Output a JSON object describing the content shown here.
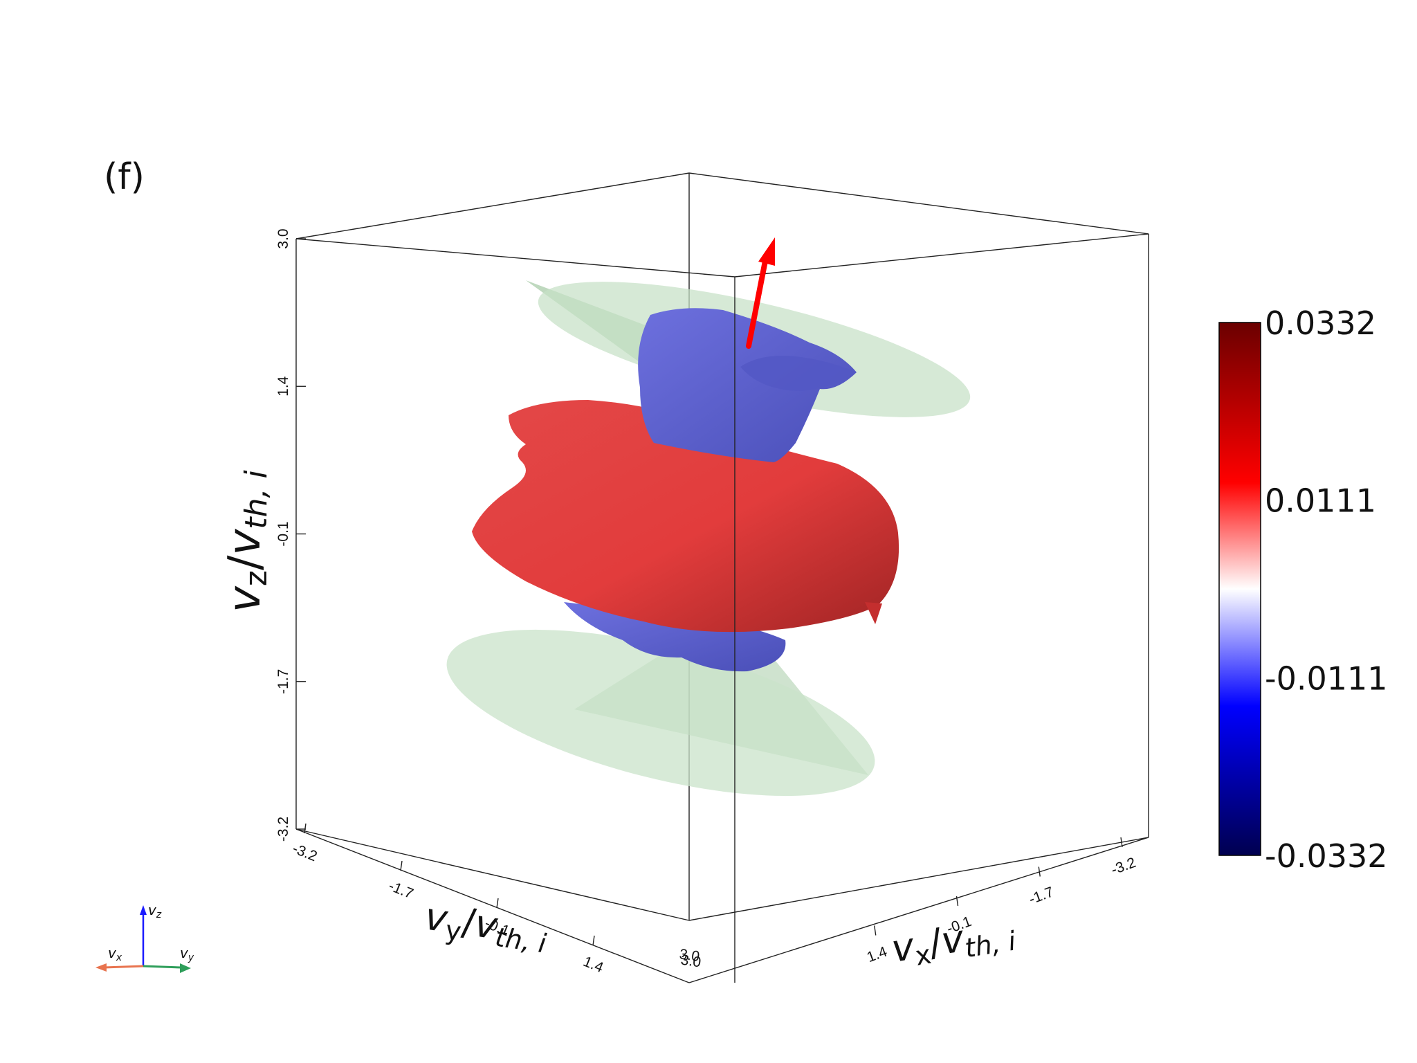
{
  "chart_data": {
    "type": "3d-isosurface",
    "panel_label": "(f)",
    "axes": {
      "x": {
        "label_main": "v",
        "label_sub": "x",
        "label_den": "v",
        "label_den_sub": "th, i",
        "ticks": [
          "1.4",
          "-0.1",
          "-1.7",
          "-3.2"
        ],
        "range": [
          -3.2,
          3.0
        ]
      },
      "y": {
        "label_main": "v",
        "label_sub": "y",
        "label_den": "v",
        "label_den_sub": "th, i",
        "ticks": [
          "-3.2",
          "-1.7",
          "-0.1",
          "1.4"
        ],
        "range": [
          -3.2,
          3.0
        ]
      },
      "z": {
        "label_main": "v",
        "label_sub": "z",
        "label_den": "v",
        "label_den_sub": "th, i",
        "ticks": [
          "3.0",
          "1.4",
          "-0.1",
          "-1.7",
          "-3.2"
        ],
        "range": [
          -3.2,
          3.0
        ]
      },
      "corner_overlap_ticks": [
        "3.0",
        "3.0"
      ]
    },
    "colorbar": {
      "ticks": [
        "0.0332",
        "0.0111",
        "-0.0111",
        "-0.0332"
      ],
      "min": -0.0332,
      "max": 0.0332,
      "colors": [
        "#6b0000",
        "#ff0000",
        "#ffffff",
        "#0000ff",
        "#00004f"
      ]
    },
    "isosurfaces": [
      {
        "name": "positive",
        "color": "#e13c3c"
      },
      {
        "name": "negative",
        "color": "#5f63d6"
      }
    ],
    "cone_color": "#bcdcbc",
    "arrow_color": "#ff0000",
    "orientation_axes": {
      "z": "v",
      "z_sub": "z",
      "x": "v",
      "x_sub": "x",
      "y": "v",
      "y_sub": "y"
    }
  }
}
